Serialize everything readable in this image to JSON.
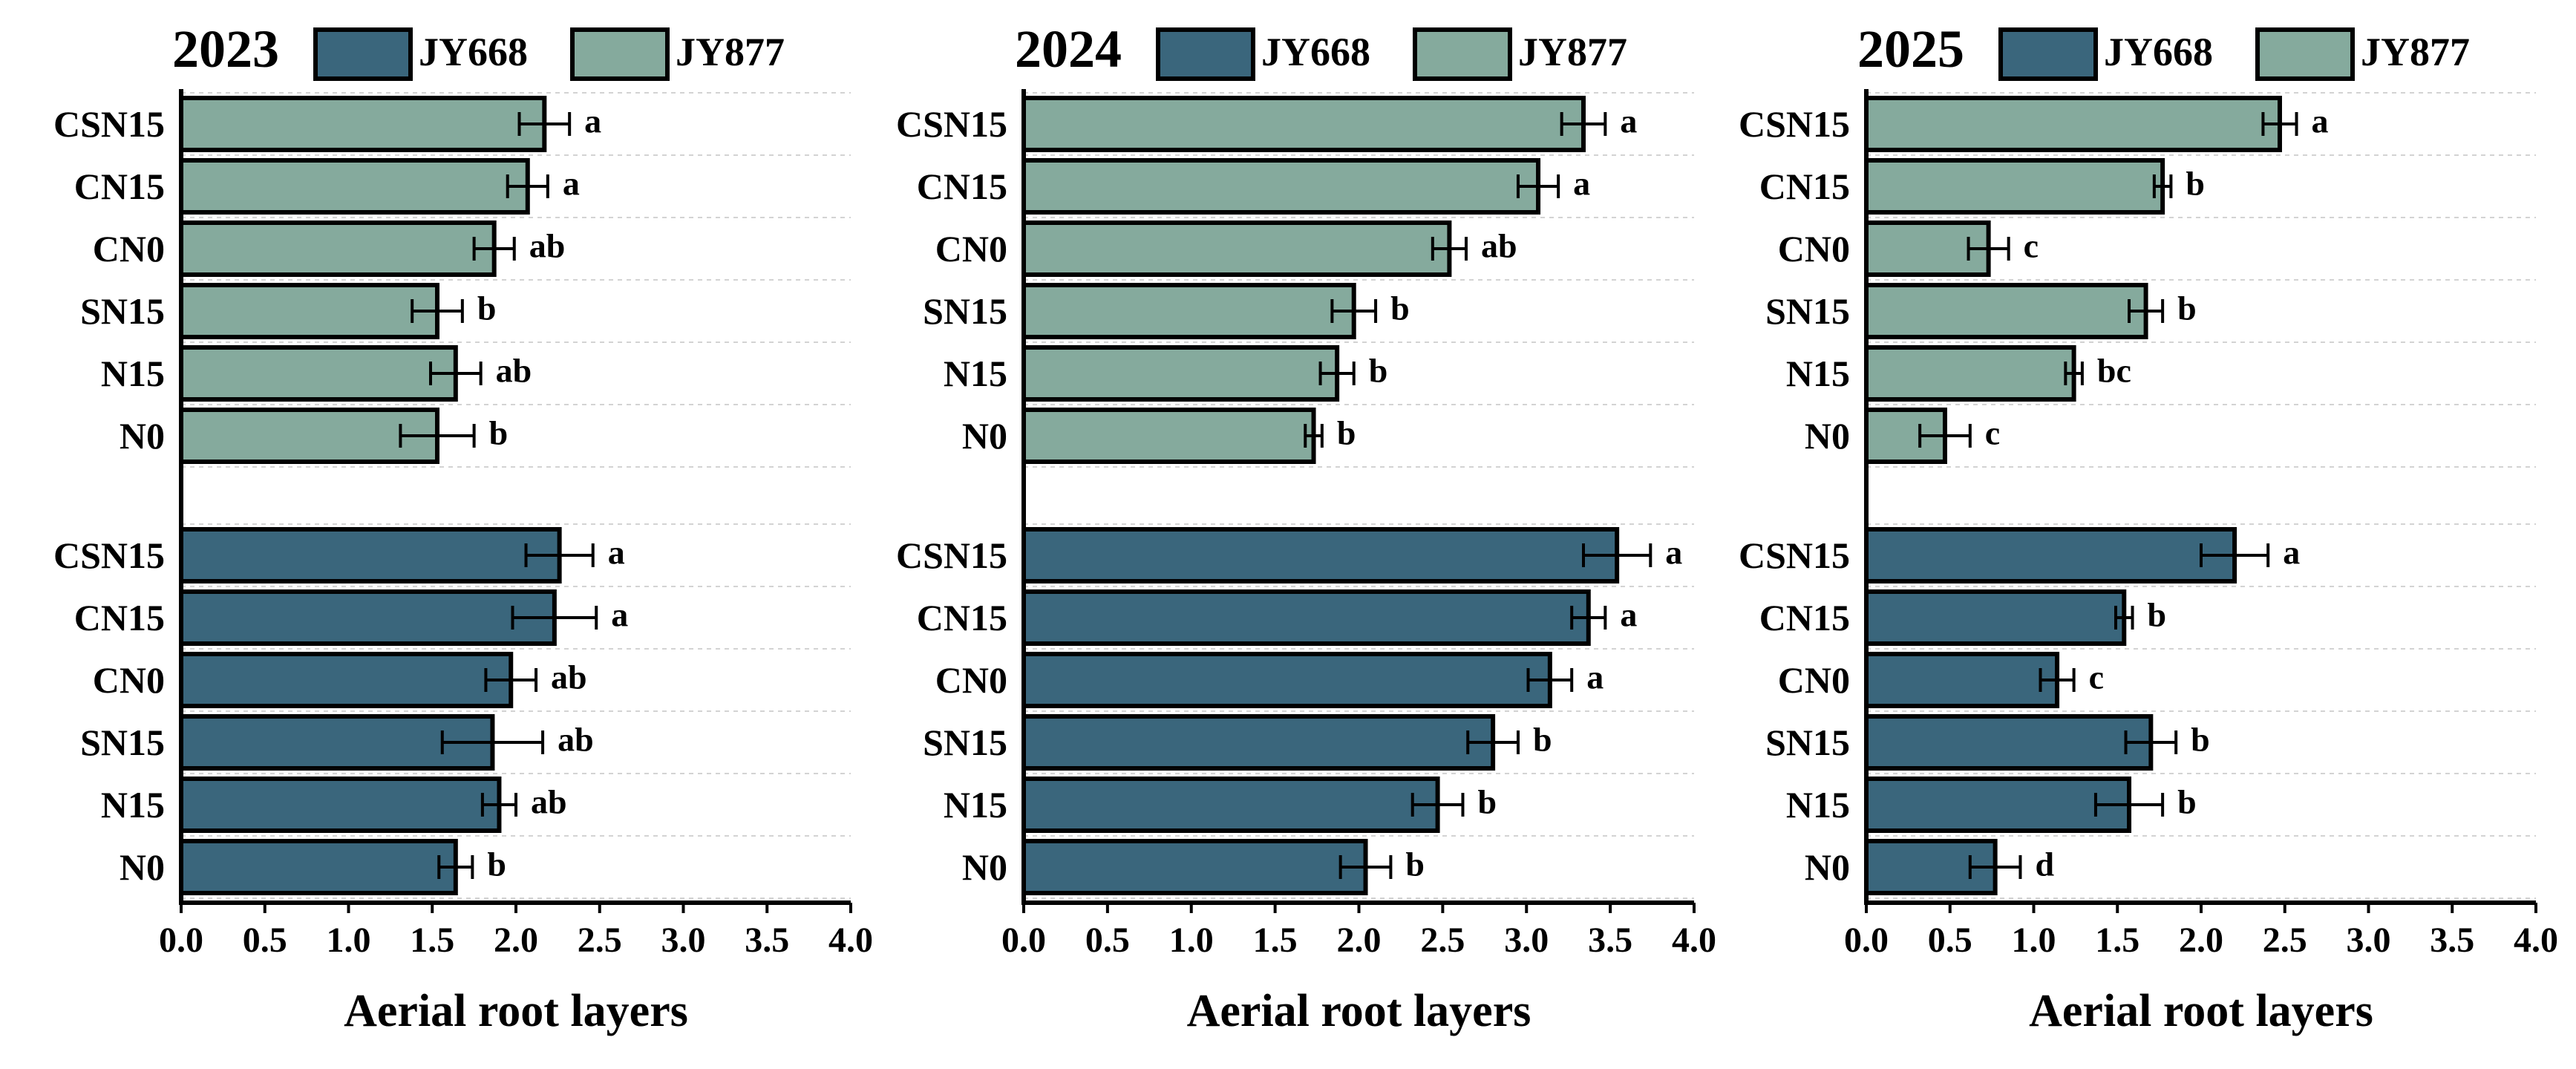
{
  "colors": {
    "JY668": "#3a667c",
    "JY877": "#85aa9d",
    "axis": "#000000",
    "grid": "#d3d3d3"
  },
  "chart_data": [
    {
      "type": "bar",
      "orientation": "horizontal",
      "title": "2023",
      "xlabel": "Aerial root layers",
      "xlim": [
        0,
        4
      ],
      "xticks": [
        "0.0",
        "0.5",
        "1.0",
        "1.5",
        "2.0",
        "2.5",
        "3.0",
        "3.5",
        "4.0"
      ],
      "legend": [
        "JY668",
        "JY877"
      ],
      "categories": [
        "CSN15",
        "CN15",
        "CN0",
        "SN15",
        "N15",
        "N0"
      ],
      "series": [
        {
          "name": "JY877",
          "values": [
            2.17,
            2.07,
            1.87,
            1.53,
            1.64,
            1.53
          ],
          "errors": [
            0.15,
            0.12,
            0.12,
            0.15,
            0.15,
            0.22
          ],
          "letters": [
            "a",
            "a",
            "ab",
            "b",
            "ab",
            "b"
          ]
        },
        {
          "name": "JY668",
          "values": [
            2.26,
            2.23,
            1.97,
            1.86,
            1.9,
            1.64
          ],
          "errors": [
            0.2,
            0.25,
            0.15,
            0.3,
            0.1,
            0.1
          ],
          "letters": [
            "a",
            "a",
            "ab",
            "ab",
            "ab",
            "b"
          ]
        }
      ]
    },
    {
      "type": "bar",
      "orientation": "horizontal",
      "title": "2024",
      "xlabel": "Aerial root layers",
      "xlim": [
        0,
        4
      ],
      "xticks": [
        "0.0",
        "0.5",
        "1.0",
        "1.5",
        "2.0",
        "2.5",
        "3.0",
        "3.5",
        "4.0"
      ],
      "legend": [
        "JY668",
        "JY877"
      ],
      "categories": [
        "CSN15",
        "CN15",
        "CN0",
        "SN15",
        "N15",
        "N0"
      ],
      "series": [
        {
          "name": "JY877",
          "values": [
            3.34,
            3.07,
            2.54,
            1.97,
            1.87,
            1.73
          ],
          "errors": [
            0.13,
            0.12,
            0.1,
            0.13,
            0.1,
            0.05
          ],
          "letters": [
            "a",
            "a",
            "ab",
            "b",
            "b",
            "b"
          ]
        },
        {
          "name": "JY668",
          "values": [
            3.54,
            3.37,
            3.14,
            2.8,
            2.47,
            2.04
          ],
          "errors": [
            0.2,
            0.1,
            0.13,
            0.15,
            0.15,
            0.15
          ],
          "letters": [
            "a",
            "a",
            "a",
            "b",
            "b",
            "b"
          ]
        }
      ]
    },
    {
      "type": "bar",
      "orientation": "horizontal",
      "title": "2025",
      "xlabel": "Aerial root layers",
      "xlim": [
        0,
        4
      ],
      "xticks": [
        "0.0",
        "0.5",
        "1.0",
        "1.5",
        "2.0",
        "2.5",
        "3.0",
        "3.5",
        "4.0"
      ],
      "legend": [
        "JY668",
        "JY877"
      ],
      "categories": [
        "CSN15",
        "CN15",
        "CN0",
        "SN15",
        "N15",
        "N0"
      ],
      "series": [
        {
          "name": "JY877",
          "values": [
            2.47,
            1.77,
            0.73,
            1.67,
            1.24,
            0.47
          ],
          "errors": [
            0.1,
            0.05,
            0.12,
            0.1,
            0.05,
            0.15
          ],
          "letters": [
            "a",
            "b",
            "c",
            "b",
            "bc",
            "c"
          ]
        },
        {
          "name": "JY668",
          "values": [
            2.2,
            1.54,
            1.14,
            1.7,
            1.57,
            0.77
          ],
          "errors": [
            0.2,
            0.05,
            0.1,
            0.15,
            0.2,
            0.15
          ],
          "letters": [
            "a",
            "b",
            "c",
            "b",
            "b",
            "d"
          ]
        }
      ]
    }
  ]
}
